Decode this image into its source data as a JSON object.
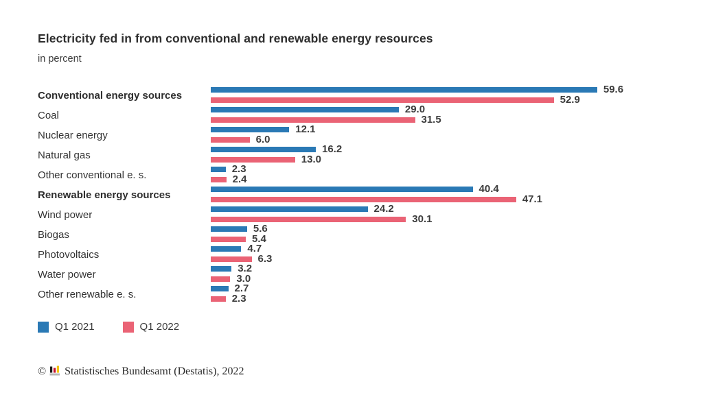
{
  "chart_data": {
    "type": "bar",
    "orientation": "horizontal",
    "title": "Electricity fed in from conventional and renewable energy resources",
    "subtitle": "in percent",
    "categories": [
      {
        "label": "Conventional energy sources",
        "bold": true
      },
      {
        "label": "Coal",
        "bold": false
      },
      {
        "label": "Nuclear energy",
        "bold": false
      },
      {
        "label": "Natural gas",
        "bold": false
      },
      {
        "label": "Other conventional e. s.",
        "bold": false
      },
      {
        "label": "Renewable energy sources",
        "bold": true
      },
      {
        "label": "Wind power",
        "bold": false
      },
      {
        "label": "Biogas",
        "bold": false
      },
      {
        "label": "Photovoltaics",
        "bold": false
      },
      {
        "label": "Water power",
        "bold": false
      },
      {
        "label": "Other renewable e. s.",
        "bold": false
      }
    ],
    "series": [
      {
        "name": "Q1 2021",
        "color": "#2a79b5",
        "values": [
          59.6,
          29.0,
          12.1,
          16.2,
          2.3,
          40.4,
          24.2,
          5.6,
          4.7,
          3.2,
          2.7
        ]
      },
      {
        "name": "Q1 2022",
        "color": "#ea6375",
        "values": [
          52.9,
          31.5,
          6.0,
          13.0,
          2.4,
          47.1,
          30.1,
          5.4,
          6.3,
          3.0,
          2.3
        ]
      }
    ],
    "xlim": [
      0,
      63
    ],
    "value_label_decimals": 1,
    "grid": false,
    "legend_position": "bottom-left",
    "value_labels": true
  },
  "footer": {
    "copyright": "©",
    "source": "Statistisches Bundesamt (Destatis), 2022"
  }
}
